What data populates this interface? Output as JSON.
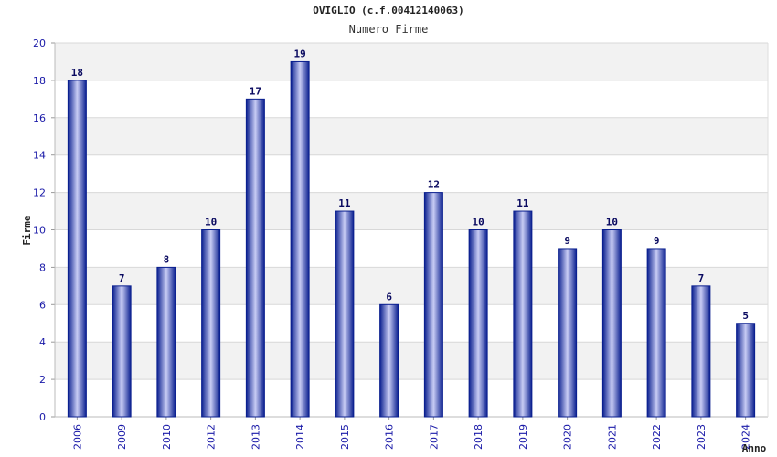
{
  "chart_data": {
    "type": "bar",
    "title": "OVIGLIO (c.f.00412140063)",
    "subtitle": "Numero Firme",
    "xlabel": "Anno",
    "ylabel": "Firme",
    "categories": [
      "2006",
      "2009",
      "2010",
      "2012",
      "2013",
      "2014",
      "2015",
      "2016",
      "2017",
      "2018",
      "2019",
      "2020",
      "2021",
      "2022",
      "2023",
      "2024"
    ],
    "values": [
      18,
      7,
      8,
      10,
      17,
      19,
      11,
      6,
      12,
      10,
      11,
      9,
      10,
      9,
      7,
      5
    ],
    "ylim": [
      0,
      20
    ],
    "yticks": [
      0,
      2,
      4,
      6,
      8,
      10,
      12,
      14,
      16,
      18,
      20
    ],
    "grid": "horizontal, alternating bands",
    "legend": "none",
    "colors": {
      "bar_dark": "#0a1f8f",
      "bar_light": "#c8ccf4",
      "band": "#f2f2f2",
      "grid": "#d8d8d8",
      "tick_text": "#1a1aa8",
      "value_text": "#0a0a60"
    }
  }
}
